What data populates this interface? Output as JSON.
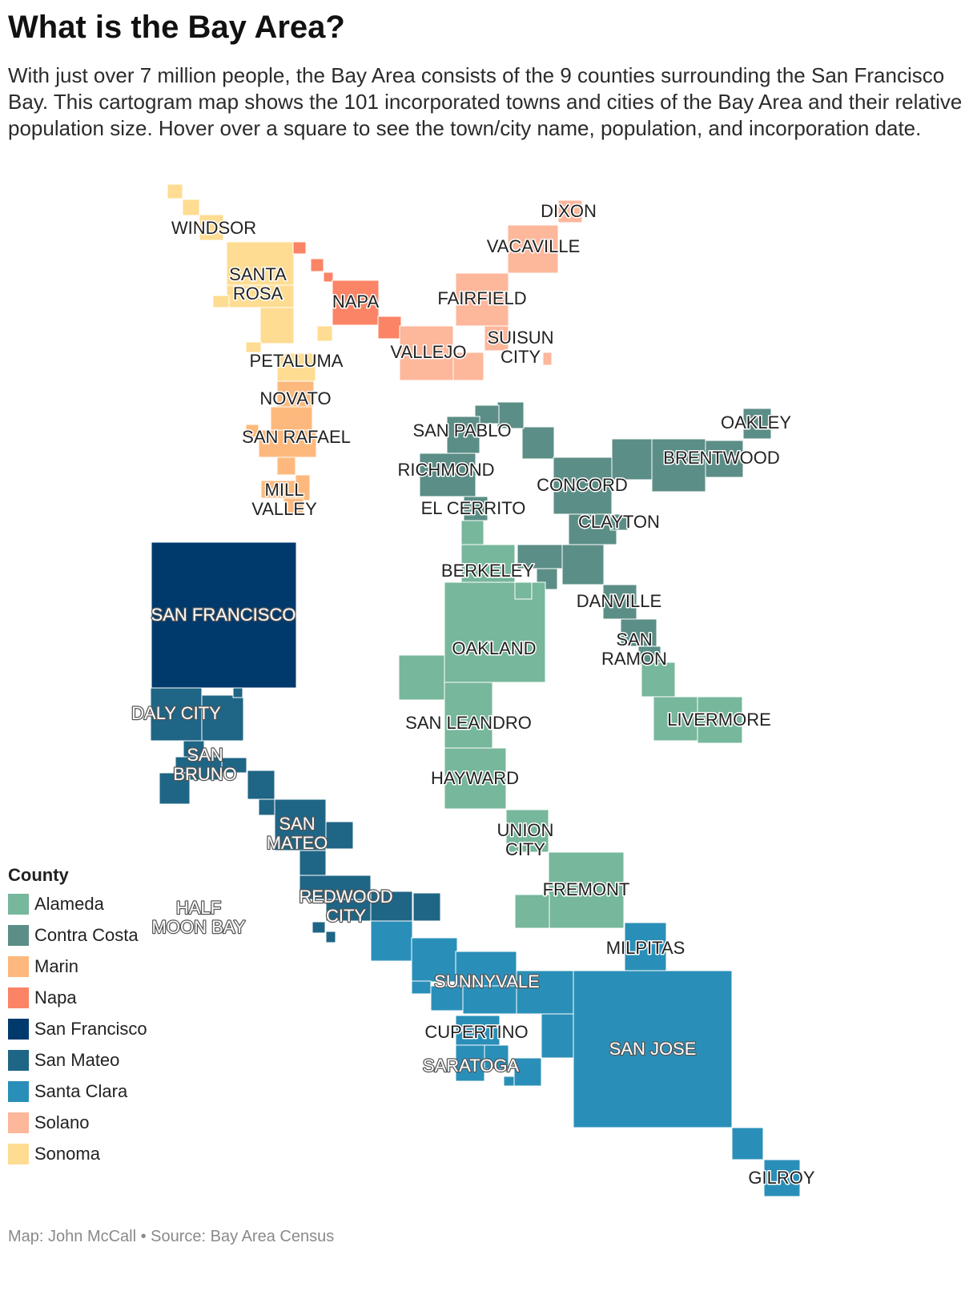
{
  "header": {
    "title": "What is the Bay Area?",
    "subtitle": "With just over 7 million people, the Bay Area consists of the 9 counties surrounding the San Francisco Bay. This cartogram map shows the 101 incorporated towns and cities of the Bay Area and their relative population size. Hover over a square to see the town/city name, population, and incorporation date."
  },
  "legend": {
    "title": "County",
    "items": [
      {
        "name": "Alameda",
        "color": "#77b79b"
      },
      {
        "name": "Contra Costa",
        "color": "#5b8e86"
      },
      {
        "name": "Marin",
        "color": "#fdb97d"
      },
      {
        "name": "Napa",
        "color": "#fb8466"
      },
      {
        "name": "San Francisco",
        "color": "#003a6c"
      },
      {
        "name": "San Mateo",
        "color": "#1f6585"
      },
      {
        "name": "Santa Clara",
        "color": "#2a8fb8"
      },
      {
        "name": "Solano",
        "color": "#fdb79b"
      },
      {
        "name": "Sonoma",
        "color": "#fedc92"
      }
    ]
  },
  "map_labels": [
    {
      "name": "Windsor",
      "text": [
        "WINDSOR"
      ]
    },
    {
      "name": "Santa Rosa",
      "text": [
        "SANTA",
        "ROSA"
      ]
    },
    {
      "name": "Napa",
      "text": [
        "NAPA"
      ]
    },
    {
      "name": "Petaluma",
      "text": [
        "PETALUMA"
      ]
    },
    {
      "name": "Novato",
      "text": [
        "NOVATO"
      ]
    },
    {
      "name": "San Rafael",
      "text": [
        "SAN RAFAEL"
      ]
    },
    {
      "name": "Mill Valley",
      "text": [
        "MILL",
        "VALLEY"
      ]
    },
    {
      "name": "Dixon",
      "text": [
        "DIXON"
      ]
    },
    {
      "name": "Vacaville",
      "text": [
        "VACAVILLE"
      ]
    },
    {
      "name": "Fairfield",
      "text": [
        "FAIRFIELD"
      ]
    },
    {
      "name": "Suisun City",
      "text": [
        "SUISUN",
        "CITY"
      ]
    },
    {
      "name": "Vallejo",
      "text": [
        "VALLEJO"
      ]
    },
    {
      "name": "San Pablo",
      "text": [
        "SAN PABLO"
      ]
    },
    {
      "name": "Richmond",
      "text": [
        "RICHMOND"
      ]
    },
    {
      "name": "El Cerrito",
      "text": [
        "EL CERRITO"
      ]
    },
    {
      "name": "Oakley",
      "text": [
        "OAKLEY"
      ]
    },
    {
      "name": "Brentwood",
      "text": [
        "BRENTWOOD"
      ]
    },
    {
      "name": "Concord",
      "text": [
        "CONCORD"
      ]
    },
    {
      "name": "Clayton",
      "text": [
        "CLAYTON"
      ]
    },
    {
      "name": "Berkeley",
      "text": [
        "BERKELEY"
      ]
    },
    {
      "name": "Danville",
      "text": [
        "DANVILLE"
      ]
    },
    {
      "name": "San Ramon",
      "text": [
        "SAN",
        "RAMON"
      ]
    },
    {
      "name": "Oakland",
      "text": [
        "OAKLAND"
      ]
    },
    {
      "name": "Livermore",
      "text": [
        "LIVERMORE"
      ]
    },
    {
      "name": "San Leandro",
      "text": [
        "SAN LEANDRO"
      ]
    },
    {
      "name": "Hayward",
      "text": [
        "HAYWARD"
      ]
    },
    {
      "name": "Union City",
      "text": [
        "UNION",
        "CITY"
      ]
    },
    {
      "name": "Fremont",
      "text": [
        "FREMONT"
      ]
    },
    {
      "name": "San Francisco",
      "text": [
        "SAN FRANCISCO"
      ]
    },
    {
      "name": "Daly City",
      "text": [
        "DALY CITY"
      ]
    },
    {
      "name": "San Bruno",
      "text": [
        "SAN",
        "BRUNO"
      ]
    },
    {
      "name": "San Mateo",
      "text": [
        "SAN",
        "MATEO"
      ]
    },
    {
      "name": "Half Moon Bay",
      "text": [
        "HALF",
        "MOON BAY"
      ]
    },
    {
      "name": "Redwood City",
      "text": [
        "REDWOOD",
        "CITY"
      ]
    },
    {
      "name": "Milpitas",
      "text": [
        "MILPITAS"
      ]
    },
    {
      "name": "Sunnyvale",
      "text": [
        "SUNNYVALE"
      ]
    },
    {
      "name": "Cupertino",
      "text": [
        "CUPERTINO"
      ]
    },
    {
      "name": "Saratoga",
      "text": [
        "SARATOGA"
      ]
    },
    {
      "name": "San Jose",
      "text": [
        "SAN JOSE"
      ]
    },
    {
      "name": "Gilroy",
      "text": [
        "GILROY"
      ]
    }
  ],
  "footer": {
    "credit": "Map: John McCall • Source: Bay Area Census"
  }
}
